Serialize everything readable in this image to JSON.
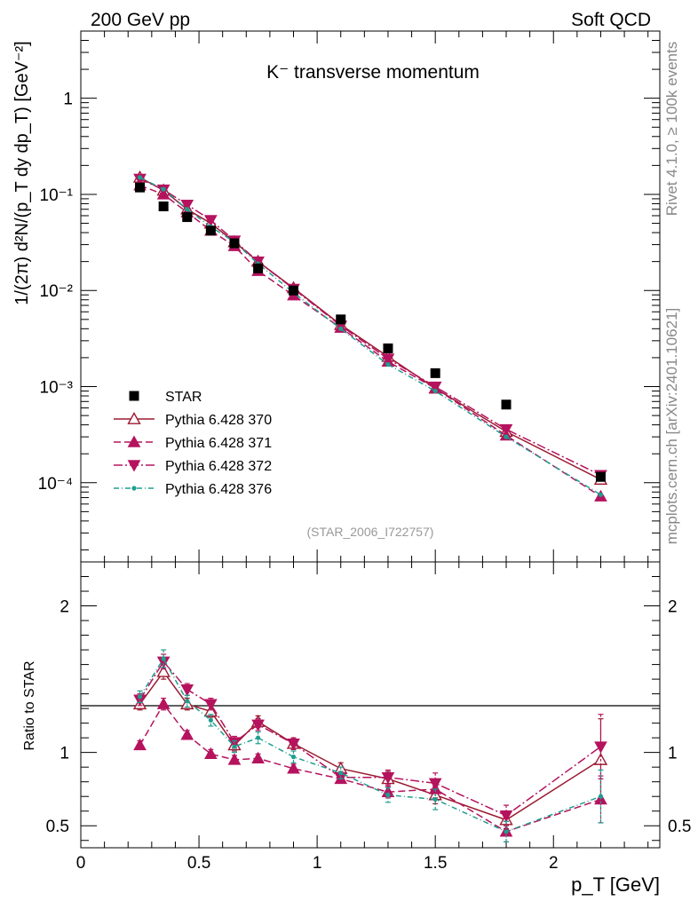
{
  "header": {
    "left": "200 GeV pp",
    "right": "Soft QCD"
  },
  "side_labels": {
    "top": "Rivet 4.1.0, ≥ 100k events",
    "bottom": "mcplots.cern.ch [arXiv:2401.10621]"
  },
  "chart_data": {
    "type": "scatter",
    "title": "K⁻ transverse momentum",
    "analysis_tag": "(STAR_2006_I722757)",
    "xlabel": "p_T [GeV]",
    "ylabel": "1/(2π)  d²N/(p_T dy dp_T) [GeV⁻²]",
    "ratio_ylabel": "Ratio to STAR",
    "xlim": [
      0,
      2.45
    ],
    "ylim": [
      1.5e-05,
      5
    ],
    "yscale": "log",
    "ratio_ylim": [
      0.35,
      2.3
    ],
    "x_ticks": [
      0,
      0.5,
      1,
      1.5,
      2
    ],
    "x_tick_labels": [
      "0",
      "0.5",
      "1",
      "1.5",
      "2"
    ],
    "y_tick_labels": [
      "1",
      "10⁻¹",
      "10⁻²",
      "10⁻³",
      "10⁻⁴"
    ],
    "ratio_ticks": [
      0.5,
      1,
      2
    ],
    "ratio_tick_labels": [
      "0.5",
      "1",
      "2"
    ],
    "legend_position": "bottom-left",
    "x": [
      0.25,
      0.35,
      0.45,
      0.55,
      0.65,
      0.75,
      0.9,
      1.1,
      1.3,
      1.5,
      1.8,
      2.2
    ],
    "data": {
      "name": "STAR",
      "color": "#000000",
      "values": [
        0.118,
        0.075,
        0.058,
        0.042,
        0.031,
        0.017,
        0.01,
        0.005,
        0.0025,
        0.00138,
        0.00065,
        0.000115
      ]
    },
    "series": [
      {
        "name": "Pythia 6.428 370",
        "color": "#9b1b30",
        "marker": "triangle-up-open",
        "dash": "",
        "values": [
          0.15,
          0.11,
          0.07,
          0.05,
          0.032,
          0.02,
          0.0106,
          0.0044,
          0.00205,
          0.00096,
          0.00034,
          0.000108
        ],
        "ratio": [
          1.33,
          1.55,
          1.33,
          1.28,
          1.05,
          1.21,
          1.06,
          0.89,
          0.82,
          0.71,
          0.54,
          0.95
        ],
        "ratio_err": [
          0.04,
          0.05,
          0.04,
          0.04,
          0.04,
          0.04,
          0.04,
          0.04,
          0.05,
          0.06,
          0.06,
          0.28
        ]
      },
      {
        "name": "Pythia 6.428 371",
        "color": "#b5135e",
        "marker": "triangle-up-filled",
        "dash": "8 4",
        "values": [
          0.124,
          0.1,
          0.065,
          0.042,
          0.029,
          0.016,
          0.0089,
          0.0041,
          0.00182,
          0.00096,
          0.00031,
          7.2e-05
        ],
        "ratio": [
          1.05,
          1.33,
          1.12,
          0.99,
          0.95,
          0.96,
          0.89,
          0.82,
          0.73,
          0.75,
          0.46,
          0.68
        ],
        "ratio_err": [
          0.03,
          0.04,
          0.03,
          0.03,
          0.03,
          0.03,
          0.03,
          0.03,
          0.04,
          0.06,
          0.07,
          0.16
        ]
      },
      {
        "name": "Pythia 6.428 372",
        "color": "#b5135e",
        "marker": "triangle-down-filled",
        "dash": "10 3 2 3",
        "values": [
          0.145,
          0.112,
          0.078,
          0.054,
          0.033,
          0.02,
          0.0104,
          0.0043,
          0.00195,
          0.001,
          0.00036,
          0.00012
        ],
        "ratio": [
          1.36,
          1.62,
          1.43,
          1.33,
          1.07,
          1.19,
          1.06,
          0.83,
          0.83,
          0.79,
          0.57,
          1.04
        ],
        "ratio_err": [
          0.04,
          0.05,
          0.04,
          0.04,
          0.04,
          0.04,
          0.04,
          0.04,
          0.05,
          0.07,
          0.07,
          0.22
        ]
      },
      {
        "name": "Pythia 6.428 376",
        "color": "#1f9e8f",
        "marker": "dot",
        "dash": "6 3 1 3",
        "values": [
          0.15,
          0.113,
          0.07,
          0.046,
          0.032,
          0.019,
          0.0095,
          0.004,
          0.0017,
          0.0009,
          0.0003,
          7.5e-05
        ],
        "ratio": [
          1.38,
          1.64,
          1.35,
          1.22,
          1.04,
          1.1,
          0.97,
          0.86,
          0.71,
          0.68,
          0.46,
          0.7
        ],
        "ratio_err": [
          0.04,
          0.06,
          0.04,
          0.04,
          0.04,
          0.04,
          0.04,
          0.04,
          0.05,
          0.07,
          0.07,
          0.18
        ]
      }
    ]
  }
}
